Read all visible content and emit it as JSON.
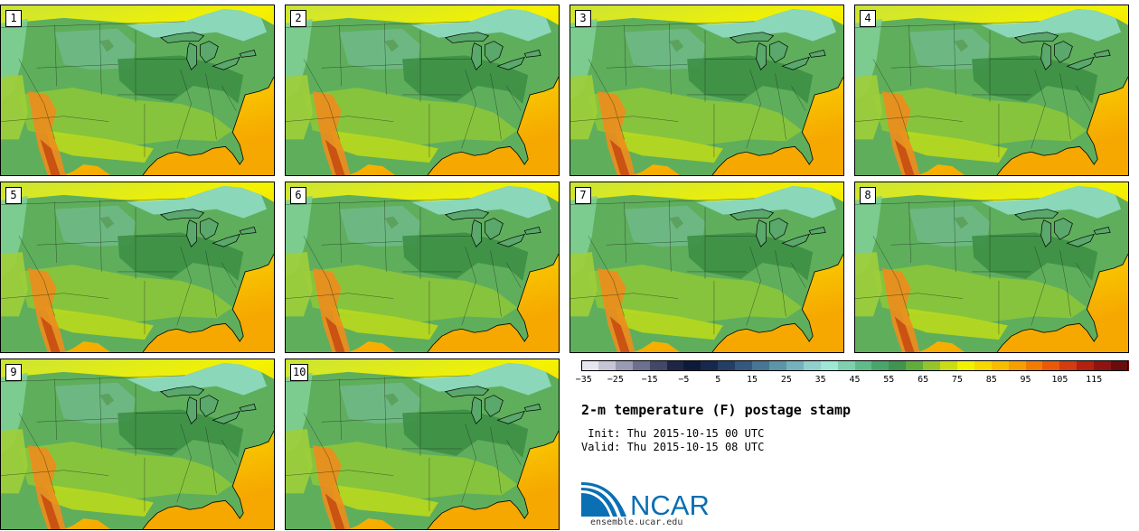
{
  "stamps": [
    {
      "label": "1"
    },
    {
      "label": "2"
    },
    {
      "label": "3"
    },
    {
      "label": "4"
    },
    {
      "label": "5"
    },
    {
      "label": "6"
    },
    {
      "label": "7"
    },
    {
      "label": "8"
    },
    {
      "label": "9"
    },
    {
      "label": "10"
    }
  ],
  "colorbar": {
    "colors": [
      "#e6e6ef",
      "#c5c5d6",
      "#9a9ab5",
      "#6e7090",
      "#414868",
      "#1e2648",
      "#0d1a3a",
      "#16284e",
      "#243f66",
      "#34587e",
      "#477694",
      "#5c94a8",
      "#73b2bc",
      "#8fcfcc",
      "#9ee6d6",
      "#7ed0ae",
      "#5fbc8a",
      "#4aa56d",
      "#3f944f",
      "#60ad3c",
      "#93c52b",
      "#c9dc14",
      "#f2f200",
      "#f7d800",
      "#f8bd00",
      "#f59f00",
      "#f27c00",
      "#e95a08",
      "#d33b10",
      "#b42110",
      "#8f1410",
      "#6a0c0c"
    ],
    "ticks": [
      "−35",
      "−25",
      "−15",
      "−5",
      "5",
      "15",
      "25",
      "35",
      "45",
      "55",
      "65",
      "75",
      "85",
      "95",
      "105",
      "115"
    ]
  },
  "title": "2-m temperature (F) postage stamp",
  "init_line": " Init: Thu 2015-10-15 00 UTC",
  "valid_line": "Valid: Thu 2015-10-15 08 UTC",
  "logo_text": "NCAR",
  "website": "ensemble.ucar.edu"
}
